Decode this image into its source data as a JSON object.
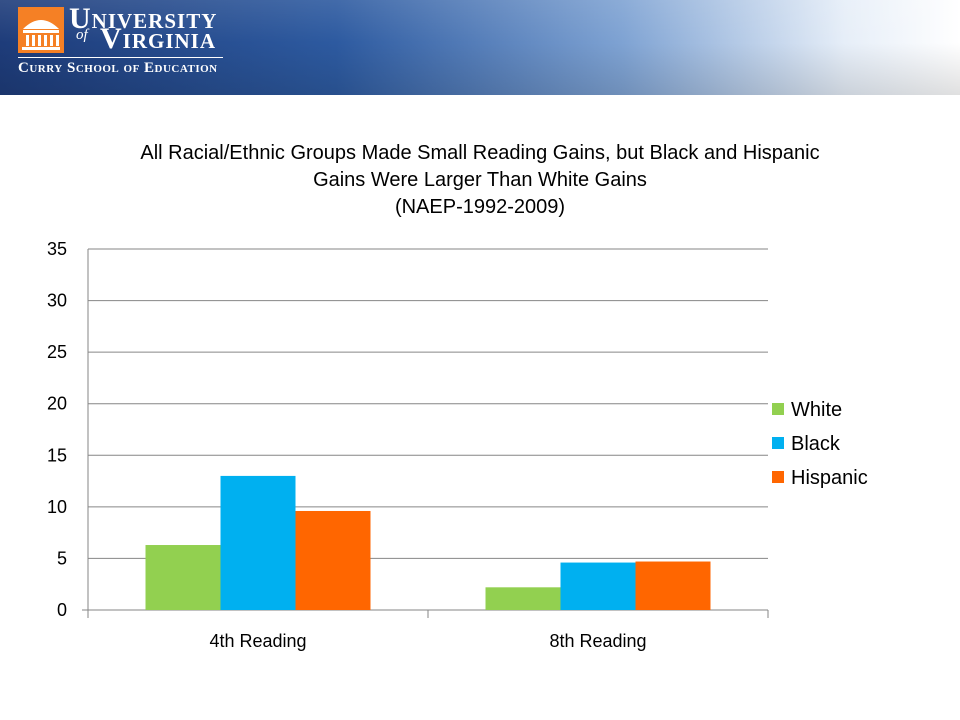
{
  "header": {
    "university_line1": "University",
    "university_of": "of",
    "university_line2": "Virginia",
    "school_name": "Curry School of Education",
    "logo_icon": "rotunda-logo-icon",
    "logo_color": "#f58025"
  },
  "chart_data": {
    "type": "bar",
    "title_lines": [
      "All Racial/Ethnic Groups Made Small Reading Gains, but Black and Hispanic",
      "Gains Were Larger Than White Gains",
      "(NAEP-1992-2009)"
    ],
    "categories": [
      "4th Reading",
      "8th Reading"
    ],
    "series": [
      {
        "name": "White",
        "values": [
          6.3,
          2.2
        ],
        "color": "#92d050"
      },
      {
        "name": "Black",
        "values": [
          13,
          4.6
        ],
        "color": "#00b0f0"
      },
      {
        "name": "Hispanic",
        "values": [
          9.6,
          4.7
        ],
        "color": "#ff6600"
      }
    ],
    "ylim": [
      0,
      35
    ],
    "yticks": [
      0,
      5,
      10,
      15,
      20,
      25,
      30,
      35
    ],
    "grid": true,
    "legend_position": "right"
  }
}
